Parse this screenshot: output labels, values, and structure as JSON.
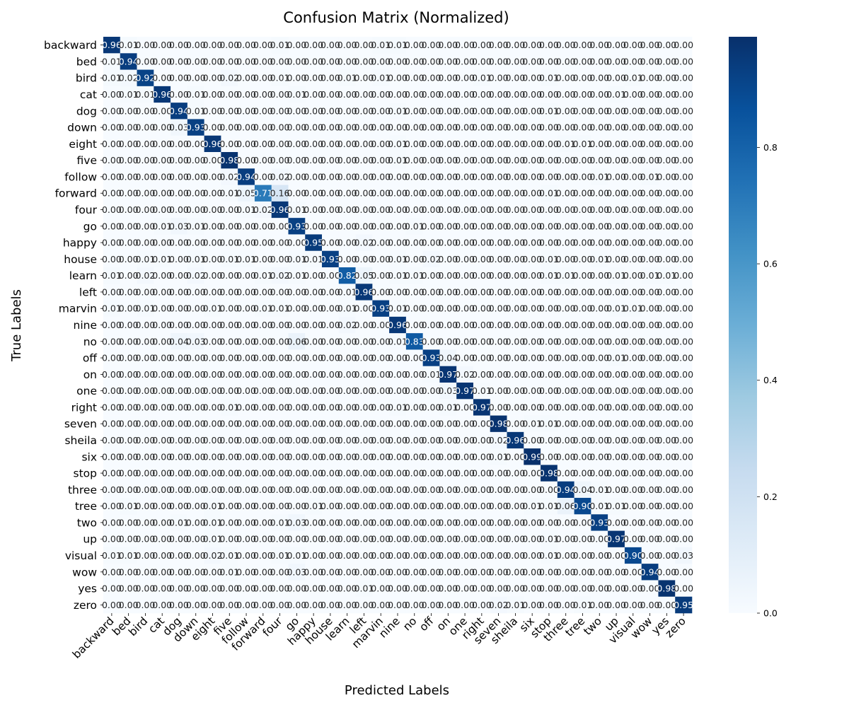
{
  "chart_data": {
    "type": "heatmap",
    "title": "Confusion Matrix (Normalized)",
    "xlabel": "Predicted Labels",
    "ylabel": "True Labels",
    "colormap": "Blues",
    "colorbar": {
      "range": [
        0,
        1
      ],
      "ticks": [
        "0.0",
        "0.2",
        "0.4",
        "0.6",
        "0.8"
      ]
    },
    "labels": [
      "backward",
      "bed",
      "bird",
      "cat",
      "dog",
      "down",
      "eight",
      "five",
      "follow",
      "forward",
      "four",
      "go",
      "happy",
      "house",
      "learn",
      "left",
      "marvin",
      "nine",
      "no",
      "off",
      "on",
      "one",
      "right",
      "seven",
      "sheila",
      "six",
      "stop",
      "three",
      "tree",
      "two",
      "up",
      "visual",
      "wow",
      "yes",
      "zero"
    ],
    "matrix": [
      [
        0.96,
        0.01,
        0.0,
        0.0,
        0.0,
        0.0,
        0.0,
        0.0,
        0.0,
        0.0,
        0.01,
        0.0,
        0.0,
        0.0,
        0.0,
        0.0,
        0.01,
        0.01,
        0.0,
        0.0,
        0.0,
        0.0,
        0.0,
        0.0,
        0.0,
        0.0,
        0.0,
        0.0,
        0.0,
        0.0,
        0.0,
        0.0,
        0.0,
        0.0,
        0.0
      ],
      [
        0.01,
        0.94,
        0.0,
        0.0,
        0.0,
        0.0,
        0.0,
        0.0,
        0.0,
        0.0,
        0.0,
        0.0,
        0.0,
        0.0,
        0.0,
        0.0,
        0.0,
        0.0,
        0.0,
        0.0,
        0.0,
        0.0,
        0.0,
        0.0,
        0.0,
        0.0,
        0.0,
        0.0,
        0.0,
        0.0,
        0.0,
        0.0,
        0.0,
        0.0,
        0.0
      ],
      [
        0.01,
        0.02,
        0.92,
        0.0,
        0.0,
        0.0,
        0.0,
        0.02,
        0.0,
        0.0,
        0.01,
        0.0,
        0.0,
        0.0,
        0.01,
        0.0,
        0.01,
        0.0,
        0.0,
        0.0,
        0.0,
        0.0,
        0.01,
        0.0,
        0.0,
        0.0,
        0.01,
        0.0,
        0.0,
        0.0,
        0.0,
        0.01,
        0.0,
        0.0,
        0.0
      ],
      [
        0.0,
        0.01,
        0.01,
        0.96,
        0.0,
        0.01,
        0.0,
        0.0,
        0.0,
        0.0,
        0.0,
        0.01,
        0.0,
        0.0,
        0.0,
        0.0,
        0.0,
        0.0,
        0.0,
        0.0,
        0.0,
        0.0,
        0.0,
        0.0,
        0.0,
        0.0,
        0.0,
        0.0,
        0.0,
        0.0,
        0.01,
        0.0,
        0.0,
        0.0,
        0.0
      ],
      [
        0.0,
        0.0,
        0.0,
        0.0,
        0.94,
        0.01,
        0.0,
        0.0,
        0.0,
        0.0,
        0.0,
        0.0,
        0.0,
        0.0,
        0.0,
        0.0,
        0.0,
        0.01,
        0.0,
        0.0,
        0.0,
        0.0,
        0.0,
        0.0,
        0.0,
        0.0,
        0.01,
        0.0,
        0.0,
        0.0,
        0.0,
        0.0,
        0.0,
        0.0,
        0.0
      ],
      [
        0.0,
        0.0,
        0.0,
        0.0,
        0.03,
        0.93,
        0.0,
        0.0,
        0.0,
        0.0,
        0.0,
        0.0,
        0.0,
        0.0,
        0.0,
        0.0,
        0.0,
        0.0,
        0.0,
        0.0,
        0.0,
        0.0,
        0.0,
        0.0,
        0.0,
        0.0,
        0.0,
        0.0,
        0.0,
        0.0,
        0.0,
        0.0,
        0.0,
        0.0,
        0.0
      ],
      [
        0.0,
        0.0,
        0.0,
        0.0,
        0.0,
        0.0,
        0.96,
        0.0,
        0.0,
        0.0,
        0.0,
        0.0,
        0.0,
        0.0,
        0.0,
        0.0,
        0.0,
        0.01,
        0.0,
        0.0,
        0.0,
        0.0,
        0.0,
        0.0,
        0.0,
        0.0,
        0.0,
        0.01,
        0.01,
        0.0,
        0.0,
        0.0,
        0.0,
        0.0,
        0.0
      ],
      [
        0.0,
        0.0,
        0.0,
        0.0,
        0.0,
        0.0,
        0.0,
        0.98,
        0.0,
        0.0,
        0.0,
        0.0,
        0.0,
        0.0,
        0.0,
        0.0,
        0.0,
        0.01,
        0.0,
        0.0,
        0.0,
        0.0,
        0.0,
        0.0,
        0.0,
        0.0,
        0.0,
        0.0,
        0.0,
        0.0,
        0.0,
        0.0,
        0.0,
        0.0,
        0.0
      ],
      [
        0.0,
        0.0,
        0.0,
        0.0,
        0.0,
        0.0,
        0.0,
        0.02,
        0.94,
        0.0,
        0.02,
        0.0,
        0.0,
        0.0,
        0.0,
        0.0,
        0.0,
        0.0,
        0.0,
        0.0,
        0.0,
        0.0,
        0.0,
        0.0,
        0.0,
        0.0,
        0.0,
        0.0,
        0.0,
        0.01,
        0.0,
        0.0,
        0.01,
        0.0,
        0.0
      ],
      [
        0.0,
        0.0,
        0.0,
        0.0,
        0.0,
        0.0,
        0.0,
        0.01,
        0.05,
        0.71,
        0.16,
        0.0,
        0.0,
        0.0,
        0.0,
        0.0,
        0.0,
        0.0,
        0.0,
        0.0,
        0.0,
        0.0,
        0.0,
        0.0,
        0.0,
        0.0,
        0.01,
        0.0,
        0.0,
        0.0,
        0.0,
        0.0,
        0.0,
        0.0,
        0.0
      ],
      [
        0.0,
        0.0,
        0.0,
        0.0,
        0.0,
        0.0,
        0.0,
        0.0,
        0.01,
        0.02,
        0.96,
        0.01,
        0.0,
        0.0,
        0.0,
        0.0,
        0.0,
        0.0,
        0.0,
        0.0,
        0.0,
        0.0,
        0.0,
        0.0,
        0.0,
        0.0,
        0.0,
        0.0,
        0.0,
        0.0,
        0.0,
        0.0,
        0.0,
        0.0,
        0.0
      ],
      [
        0.0,
        0.0,
        0.0,
        0.01,
        0.03,
        0.01,
        0.0,
        0.0,
        0.0,
        0.0,
        0.0,
        0.93,
        0.0,
        0.0,
        0.0,
        0.0,
        0.0,
        0.0,
        0.01,
        0.0,
        0.0,
        0.0,
        0.0,
        0.0,
        0.0,
        0.0,
        0.0,
        0.0,
        0.0,
        0.0,
        0.0,
        0.0,
        0.0,
        0.0,
        0.0
      ],
      [
        0.0,
        0.0,
        0.0,
        0.0,
        0.0,
        0.0,
        0.0,
        0.0,
        0.0,
        0.0,
        0.0,
        0.0,
        0.95,
        0.0,
        0.0,
        0.02,
        0.0,
        0.0,
        0.0,
        0.0,
        0.0,
        0.0,
        0.0,
        0.0,
        0.0,
        0.0,
        0.0,
        0.0,
        0.0,
        0.0,
        0.0,
        0.0,
        0.0,
        0.0,
        0.0
      ],
      [
        0.0,
        0.0,
        0.01,
        0.01,
        0.0,
        0.01,
        0.0,
        0.01,
        0.01,
        0.0,
        0.0,
        0.01,
        0.01,
        0.93,
        0.0,
        0.0,
        0.0,
        0.01,
        0.0,
        0.02,
        0.0,
        0.0,
        0.0,
        0.0,
        0.0,
        0.0,
        0.01,
        0.0,
        0.0,
        0.01,
        0.0,
        0.0,
        0.0,
        0.0,
        0.0
      ],
      [
        0.01,
        0.0,
        0.02,
        0.0,
        0.0,
        0.02,
        0.0,
        0.0,
        0.0,
        0.01,
        0.02,
        0.01,
        0.0,
        0.0,
        0.82,
        0.05,
        0.0,
        0.01,
        0.01,
        0.0,
        0.0,
        0.0,
        0.0,
        0.0,
        0.0,
        0.0,
        0.01,
        0.01,
        0.0,
        0.0,
        0.01,
        0.0,
        0.01,
        0.01,
        0.0
      ],
      [
        0.0,
        0.0,
        0.0,
        0.0,
        0.0,
        0.0,
        0.0,
        0.0,
        0.0,
        0.0,
        0.0,
        0.0,
        0.0,
        0.0,
        0.01,
        0.96,
        0.0,
        0.0,
        0.0,
        0.0,
        0.0,
        0.0,
        0.0,
        0.0,
        0.0,
        0.0,
        0.0,
        0.0,
        0.0,
        0.0,
        0.0,
        0.0,
        0.0,
        0.0,
        0.0
      ],
      [
        0.01,
        0.0,
        0.01,
        0.0,
        0.0,
        0.0,
        0.01,
        0.0,
        0.0,
        0.01,
        0.01,
        0.0,
        0.0,
        0.0,
        0.01,
        0.0,
        0.93,
        0.01,
        0.0,
        0.0,
        0.0,
        0.0,
        0.0,
        0.0,
        0.0,
        0.0,
        0.0,
        0.0,
        0.0,
        0.0,
        0.01,
        0.01,
        0.0,
        0.0,
        0.0
      ],
      [
        0.0,
        0.0,
        0.0,
        0.0,
        0.0,
        0.0,
        0.0,
        0.0,
        0.0,
        0.0,
        0.0,
        0.0,
        0.0,
        0.0,
        0.02,
        0.0,
        0.0,
        0.96,
        0.0,
        0.0,
        0.0,
        0.0,
        0.0,
        0.0,
        0.0,
        0.0,
        0.0,
        0.0,
        0.0,
        0.0,
        0.0,
        0.0,
        0.0,
        0.0,
        0.0
      ],
      [
        0.0,
        0.0,
        0.0,
        0.0,
        0.04,
        0.03,
        0.0,
        0.0,
        0.0,
        0.0,
        0.0,
        0.06,
        0.0,
        0.0,
        0.0,
        0.0,
        0.0,
        0.01,
        0.83,
        0.0,
        0.0,
        0.0,
        0.0,
        0.0,
        0.0,
        0.0,
        0.0,
        0.0,
        0.0,
        0.0,
        0.0,
        0.0,
        0.0,
        0.0,
        0.0
      ],
      [
        0.0,
        0.0,
        0.0,
        0.0,
        0.0,
        0.0,
        0.0,
        0.0,
        0.0,
        0.0,
        0.0,
        0.0,
        0.0,
        0.0,
        0.0,
        0.0,
        0.0,
        0.0,
        0.0,
        0.93,
        0.04,
        0.0,
        0.0,
        0.0,
        0.0,
        0.0,
        0.0,
        0.0,
        0.0,
        0.0,
        0.01,
        0.0,
        0.0,
        0.0,
        0.0
      ],
      [
        0.0,
        0.0,
        0.0,
        0.0,
        0.0,
        0.0,
        0.0,
        0.0,
        0.0,
        0.0,
        0.0,
        0.0,
        0.0,
        0.0,
        0.0,
        0.0,
        0.0,
        0.0,
        0.0,
        0.01,
        0.97,
        0.02,
        0.0,
        0.0,
        0.0,
        0.0,
        0.0,
        0.0,
        0.0,
        0.0,
        0.0,
        0.0,
        0.0,
        0.0,
        0.0
      ],
      [
        0.0,
        0.0,
        0.0,
        0.0,
        0.0,
        0.0,
        0.0,
        0.0,
        0.0,
        0.0,
        0.0,
        0.0,
        0.0,
        0.0,
        0.0,
        0.0,
        0.0,
        0.0,
        0.0,
        0.0,
        0.03,
        0.97,
        0.01,
        0.0,
        0.0,
        0.0,
        0.0,
        0.0,
        0.0,
        0.0,
        0.0,
        0.0,
        0.0,
        0.0,
        0.0
      ],
      [
        0.0,
        0.0,
        0.0,
        0.0,
        0.0,
        0.0,
        0.0,
        0.01,
        0.0,
        0.0,
        0.0,
        0.0,
        0.0,
        0.0,
        0.0,
        0.0,
        0.0,
        0.01,
        0.0,
        0.0,
        0.01,
        0.0,
        0.97,
        0.0,
        0.0,
        0.0,
        0.0,
        0.0,
        0.0,
        0.0,
        0.0,
        0.0,
        0.0,
        0.0,
        0.0
      ],
      [
        0.0,
        0.0,
        0.0,
        0.0,
        0.0,
        0.0,
        0.0,
        0.0,
        0.0,
        0.0,
        0.0,
        0.0,
        0.0,
        0.0,
        0.0,
        0.0,
        0.0,
        0.0,
        0.0,
        0.0,
        0.0,
        0.0,
        0.0,
        0.98,
        0.0,
        0.01,
        0.01,
        0.0,
        0.0,
        0.0,
        0.0,
        0.0,
        0.0,
        0.0,
        0.0
      ],
      [
        0.0,
        0.0,
        0.0,
        0.0,
        0.0,
        0.0,
        0.0,
        0.0,
        0.0,
        0.0,
        0.0,
        0.0,
        0.0,
        0.0,
        0.0,
        0.0,
        0.0,
        0.0,
        0.0,
        0.0,
        0.0,
        0.0,
        0.0,
        0.02,
        0.96,
        0.0,
        0.0,
        0.0,
        0.0,
        0.0,
        0.0,
        0.0,
        0.0,
        0.0,
        0.0
      ],
      [
        0.0,
        0.0,
        0.0,
        0.0,
        0.0,
        0.0,
        0.0,
        0.0,
        0.0,
        0.0,
        0.0,
        0.0,
        0.0,
        0.0,
        0.0,
        0.0,
        0.0,
        0.0,
        0.0,
        0.0,
        0.0,
        0.0,
        0.0,
        0.01,
        0.0,
        0.99,
        0.0,
        0.0,
        0.0,
        0.0,
        0.0,
        0.0,
        0.0,
        0.0,
        0.0
      ],
      [
        0.0,
        0.0,
        0.0,
        0.0,
        0.0,
        0.0,
        0.0,
        0.0,
        0.0,
        0.0,
        0.0,
        0.0,
        0.0,
        0.0,
        0.0,
        0.0,
        0.0,
        0.0,
        0.0,
        0.0,
        0.0,
        0.0,
        0.0,
        0.0,
        0.0,
        0.0,
        0.98,
        0.0,
        0.0,
        0.0,
        0.0,
        0.0,
        0.0,
        0.0,
        0.0
      ],
      [
        0.0,
        0.0,
        0.0,
        0.0,
        0.0,
        0.0,
        0.0,
        0.0,
        0.0,
        0.0,
        0.0,
        0.0,
        0.0,
        0.0,
        0.0,
        0.0,
        0.0,
        0.0,
        0.0,
        0.0,
        0.0,
        0.0,
        0.0,
        0.0,
        0.0,
        0.0,
        0.0,
        0.94,
        0.04,
        0.01,
        0.0,
        0.0,
        0.0,
        0.0,
        0.0
      ],
      [
        0.0,
        0.01,
        0.0,
        0.0,
        0.0,
        0.0,
        0.01,
        0.0,
        0.0,
        0.0,
        0.0,
        0.0,
        0.01,
        0.0,
        0.0,
        0.0,
        0.0,
        0.0,
        0.0,
        0.0,
        0.0,
        0.0,
        0.0,
        0.0,
        0.0,
        0.01,
        0.01,
        0.06,
        0.9,
        0.01,
        0.01,
        0.0,
        0.0,
        0.0,
        0.0
      ],
      [
        0.0,
        0.0,
        0.0,
        0.0,
        0.01,
        0.0,
        0.01,
        0.0,
        0.0,
        0.0,
        0.01,
        0.03,
        0.0,
        0.0,
        0.0,
        0.0,
        0.0,
        0.0,
        0.0,
        0.0,
        0.0,
        0.0,
        0.0,
        0.0,
        0.0,
        0.0,
        0.0,
        0.0,
        0.0,
        0.93,
        0.0,
        0.0,
        0.0,
        0.0,
        0.0
      ],
      [
        0.0,
        0.0,
        0.0,
        0.0,
        0.0,
        0.0,
        0.01,
        0.0,
        0.0,
        0.0,
        0.0,
        0.0,
        0.0,
        0.0,
        0.0,
        0.0,
        0.0,
        0.0,
        0.0,
        0.0,
        0.0,
        0.0,
        0.0,
        0.0,
        0.0,
        0.0,
        0.01,
        0.0,
        0.0,
        0.0,
        0.97,
        0.0,
        0.0,
        0.0,
        0.0
      ],
      [
        0.01,
        0.01,
        0.0,
        0.0,
        0.0,
        0.0,
        0.02,
        0.01,
        0.0,
        0.0,
        0.01,
        0.01,
        0.0,
        0.0,
        0.0,
        0.0,
        0.0,
        0.0,
        0.0,
        0.0,
        0.0,
        0.0,
        0.0,
        0.0,
        0.0,
        0.0,
        0.01,
        0.0,
        0.0,
        0.0,
        0.0,
        0.9,
        0.0,
        0.0,
        0.03
      ],
      [
        0.0,
        0.0,
        0.0,
        0.0,
        0.0,
        0.0,
        0.0,
        0.01,
        0.0,
        0.0,
        0.0,
        0.03,
        0.0,
        0.0,
        0.0,
        0.0,
        0.0,
        0.0,
        0.0,
        0.0,
        0.0,
        0.0,
        0.0,
        0.0,
        0.0,
        0.0,
        0.0,
        0.0,
        0.0,
        0.0,
        0.0,
        0.0,
        0.94,
        0.0,
        0.0
      ],
      [
        0.0,
        0.0,
        0.0,
        0.0,
        0.0,
        0.0,
        0.0,
        0.0,
        0.0,
        0.0,
        0.0,
        0.0,
        0.0,
        0.0,
        0.0,
        0.01,
        0.0,
        0.0,
        0.0,
        0.0,
        0.0,
        0.0,
        0.0,
        0.0,
        0.0,
        0.0,
        0.0,
        0.0,
        0.0,
        0.0,
        0.0,
        0.0,
        0.0,
        0.98,
        0.0
      ],
      [
        0.0,
        0.0,
        0.0,
        0.0,
        0.0,
        0.0,
        0.0,
        0.0,
        0.0,
        0.0,
        0.0,
        0.0,
        0.0,
        0.0,
        0.0,
        0.0,
        0.0,
        0.0,
        0.0,
        0.0,
        0.0,
        0.0,
        0.0,
        0.02,
        0.01,
        0.0,
        0.0,
        0.0,
        0.01,
        0.0,
        0.0,
        0.0,
        0.0,
        0.0,
        0.95
      ]
    ]
  }
}
